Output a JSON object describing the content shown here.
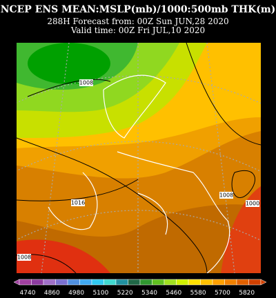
{
  "header": {
    "title": "NCEP ENS MEAN:MSLP(mb)/1000:500mb THK(m)",
    "forecast": "288H Forecast from: 00Z Sun JUN,28 2020",
    "valid": "Valid time: 00Z Fri JUL,10 2020"
  },
  "isobar_labels": [
    "1008",
    "1016",
    "1008",
    "1000",
    "1008"
  ],
  "colorbar": {
    "labels": [
      4740,
      4860,
      4980,
      5100,
      5220,
      5340,
      5460,
      5580,
      5700,
      5820
    ],
    "colors": [
      "#a040a0",
      "#8c3ca0",
      "#a070c8",
      "#7a70d0",
      "#5090e0",
      "#40a8f0",
      "#30c8f0",
      "#40d8d0",
      "#2090a0",
      "#206848",
      "#309830",
      "#60c020",
      "#a0e020",
      "#d0f000",
      "#ffe000",
      "#ffc000",
      "#ffa000",
      "#f08000",
      "#e06000",
      "#d04000"
    ]
  }
}
